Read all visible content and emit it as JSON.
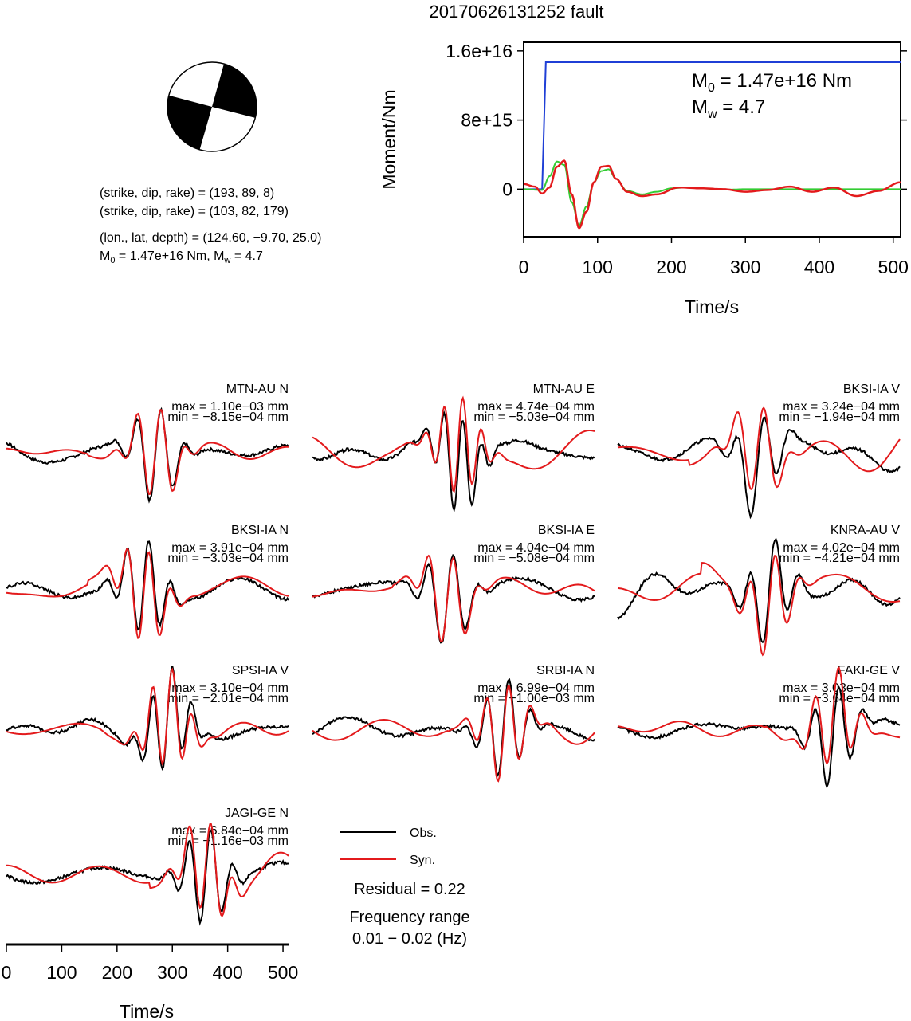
{
  "title": "20170626131252 fault",
  "beachball": {
    "planes": [
      {
        "label": "(strike, dip, rake) = (193, 89, 8)"
      },
      {
        "label": "(strike, dip, rake) = (103, 82, 179)"
      }
    ],
    "location": "(lon., lat, depth) = (124.60, −9.70, 25.0)",
    "moment_line": {
      "m0_prefix": "M",
      "m0_sub": "0",
      "m0_text": " = 1.47e+16 Nm, M",
      "mw_sub": "w",
      "mw_text": " = 4.7"
    }
  },
  "colors": {
    "obs": "#000000",
    "syn": "#e31a1c",
    "moment": "#1f3fd6",
    "stf": "#33cc33",
    "axis": "#000000"
  },
  "chart_data": [
    {
      "type": "line",
      "name": "moment-rate",
      "xlabel": "Time/s",
      "ylabel": "Moment/Nm",
      "xlim": [
        0,
        510
      ],
      "ylim": [
        -5500000000000000.0,
        1.7e+16
      ],
      "xticks": [
        "0",
        "100",
        "200",
        "300",
        "400",
        "500"
      ],
      "xtick_values": [
        0,
        100,
        200,
        300,
        400,
        500
      ],
      "yticks": [
        "0",
        "8e+15",
        "1.6e+16"
      ],
      "ytick_values": [
        0,
        8000000000000000.0,
        1.6e+16
      ],
      "annotation": {
        "m0_prefix": "M",
        "m0_sub": "0",
        "m0_text": " = 1.47e+16 Nm",
        "mw_prefix": "M",
        "mw_sub": "w",
        "mw_text": " = 4.7"
      },
      "series": [
        {
          "color": "blue",
          "x": [
            0,
            25,
            30,
            510
          ],
          "y": [
            0,
            0,
            1.47e+16,
            1.47e+16
          ]
        },
        {
          "color": "green",
          "x": [
            0,
            25,
            35,
            45,
            55,
            65,
            75,
            85,
            95,
            105,
            115,
            125,
            140,
            160,
            180,
            200,
            220,
            240,
            260,
            280,
            300,
            510
          ],
          "y": [
            0,
            -100000000000000.0,
            1500000000000000.0,
            3200000000000000.0,
            2800000000000000.0,
            -1500000000000000.0,
            -4200000000000000.0,
            -2000000000000000.0,
            800000000000000.0,
            2100000000000000.0,
            2300000000000000.0,
            1200000000000000.0,
            -200000000000000.0,
            -600000000000000.0,
            -300000000000000.0,
            100000000000000.0,
            200000000000000.0,
            100000000000000.0,
            0,
            -50000000000000.0,
            0,
            0
          ]
        },
        {
          "color": "red",
          "x": [
            0,
            15,
            25,
            35,
            45,
            55,
            65,
            75,
            85,
            95,
            105,
            115,
            125,
            140,
            160,
            180,
            210,
            240,
            270,
            300,
            330,
            360,
            390,
            420,
            450,
            480,
            510
          ],
          "y": [
            600000000000000.0,
            300000000000000.0,
            -500000000000000.0,
            200000000000000.0,
            2600000000000000.0,
            3300000000000000.0,
            -600000000000000.0,
            -4500000000000000.0,
            -2600000000000000.0,
            800000000000000.0,
            2600000000000000.0,
            2700000000000000.0,
            1200000000000000.0,
            -300000000000000.0,
            -800000000000000.0,
            -600000000000000.0,
            200000000000000.0,
            100000000000000.0,
            0,
            -300000000000000.0,
            -100000000000000.0,
            300000000000000.0,
            -300000000000000.0,
            200000000000000.0,
            -800000000000000.0,
            -200000000000000.0,
            800000000000000.0
          ]
        }
      ]
    },
    {
      "type": "line",
      "name": "waveforms",
      "xlabel": "Time/s",
      "xlim": [
        0,
        510
      ],
      "xticks": [
        "0",
        "100",
        "200",
        "300",
        "400",
        "500"
      ],
      "xtick_values": [
        0,
        100,
        200,
        300,
        400,
        500
      ],
      "legend": [
        {
          "label": "Obs.",
          "color": "black"
        },
        {
          "label": "Syn.",
          "color": "red"
        }
      ],
      "residual": "Residual = 0.22",
      "freq_label": "Frequency range",
      "freq_value": "0.01 − 0.02 (Hz)",
      "panels": [
        {
          "station": "MTN-AU N",
          "max": "max = 1.10e−03 mm",
          "min": "min = −8.15e−04 mm",
          "peak_t": 280,
          "trough_t": 258,
          "seed": 1
        },
        {
          "station": "MTN-AU E",
          "max": "max = 4.74e−04 mm",
          "min": "min = −5.03e−04 mm",
          "peak_t": 272,
          "trough_t": 255,
          "seed": 2
        },
        {
          "station": "BKSI-IA V",
          "max": "max = 3.24e−04 mm",
          "min": "min = −1.94e−04 mm",
          "peak_t": 265,
          "trough_t": 240,
          "seed": 3
        },
        {
          "station": "BKSI-IA N",
          "max": "max = 3.91e−04 mm",
          "min": "min = −3.03e−04 mm",
          "peak_t": 238,
          "trough_t": 258,
          "seed": 4
        },
        {
          "station": "BKSI-IA E",
          "max": "max = 4.04e−04 mm",
          "min": "min = −5.08e−04 mm",
          "peak_t": 232,
          "trough_t": 255,
          "seed": 5
        },
        {
          "station": "KNRA-AU V",
          "max": "max = 4.02e−04 mm",
          "min": "min = −4.21e−04 mm",
          "peak_t": 285,
          "trough_t": 262,
          "seed": 6
        },
        {
          "station": "SPSI-IA V",
          "max": "max = 3.10e−04 mm",
          "min": "min = −2.01e−04 mm",
          "peak_t": 300,
          "trough_t": 282,
          "seed": 7
        },
        {
          "station": "SRBI-IA N",
          "max": "max = 6.99e−04 mm",
          "min": "min = −1.00e−03 mm",
          "peak_t": 335,
          "trough_t": 355,
          "seed": 8
        },
        {
          "station": "FAKI-GE V",
          "max": "max = 3.03e−04 mm",
          "min": "min = −3.64e−04 mm",
          "peak_t": 400,
          "trough_t": 378,
          "seed": 9
        },
        {
          "station": "JAGI-GE N",
          "max": "max = 6.84e−04 mm",
          "min": "min = −1.16e−03 mm",
          "peak_t": 350,
          "trough_t": 370,
          "seed": 10
        }
      ]
    }
  ]
}
